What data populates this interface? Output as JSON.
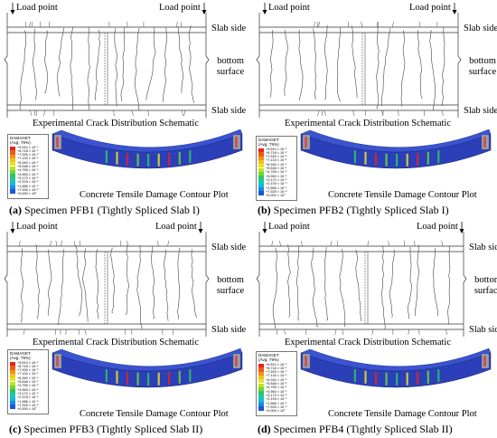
{
  "panels": [
    {
      "label": "(a)",
      "specimen": "Specimen PFB1 (Tightly Spliced Slab I)",
      "legend_title": "DAMAGET",
      "legend_avg": "(Avg: 75%)"
    },
    {
      "label": "(b)",
      "specimen": "Specimen PFB2 (Tightly Spliced Slab I)",
      "legend_title": "DAMAGET",
      "legend_avg": "(Avg: 75%)"
    },
    {
      "label": "(c)",
      "specimen": "Specimen PFB3 (Tightly Spliced Slab II)",
      "legend_title": "DAMAGET",
      "legend_avg": "(Avg: 75%)"
    },
    {
      "label": "(d)",
      "specimen": "Specimen PFB4 (Tightly Spliced Slab II)",
      "legend_title": "DAMAGET",
      "legend_avg": "(Avg: 79%)"
    }
  ],
  "labels": {
    "load_point": "Load point",
    "slab_side": "Slab side",
    "bottom_surface_1": "bottom",
    "bottom_surface_2": "surface",
    "schematic_title": "Experimental Crack Distribution Schematic",
    "contour_title": "Concrete Tensile Damage Contour Plot"
  },
  "legend_values": [
    "+9.510 × 10⁻¹",
    "+8.718 × 10⁻¹",
    "+7.925 × 10⁻¹",
    "+7.133 × 10⁻¹",
    "+6.340 × 10⁻¹",
    "+5.548 × 10⁻¹",
    "+4.755 × 10⁻¹",
    "+3.963 × 10⁻¹",
    "+3.170 × 10⁻¹",
    "+2.378 × 10⁻¹",
    "+1.585 × 10⁻¹",
    "+7.925 × 10⁻²",
    "+0.000 × 10⁰"
  ],
  "legend_colors": [
    "#e8231c",
    "#ef5a12",
    "#f3901c",
    "#f4c21d",
    "#e7e41d",
    "#b9e51f",
    "#6fd631",
    "#2dc55f",
    "#1fc5a8",
    "#16b6df",
    "#1a8be3",
    "#1b55d8",
    "#1b2dbf"
  ],
  "beam_color": "#2b3fb8"
}
